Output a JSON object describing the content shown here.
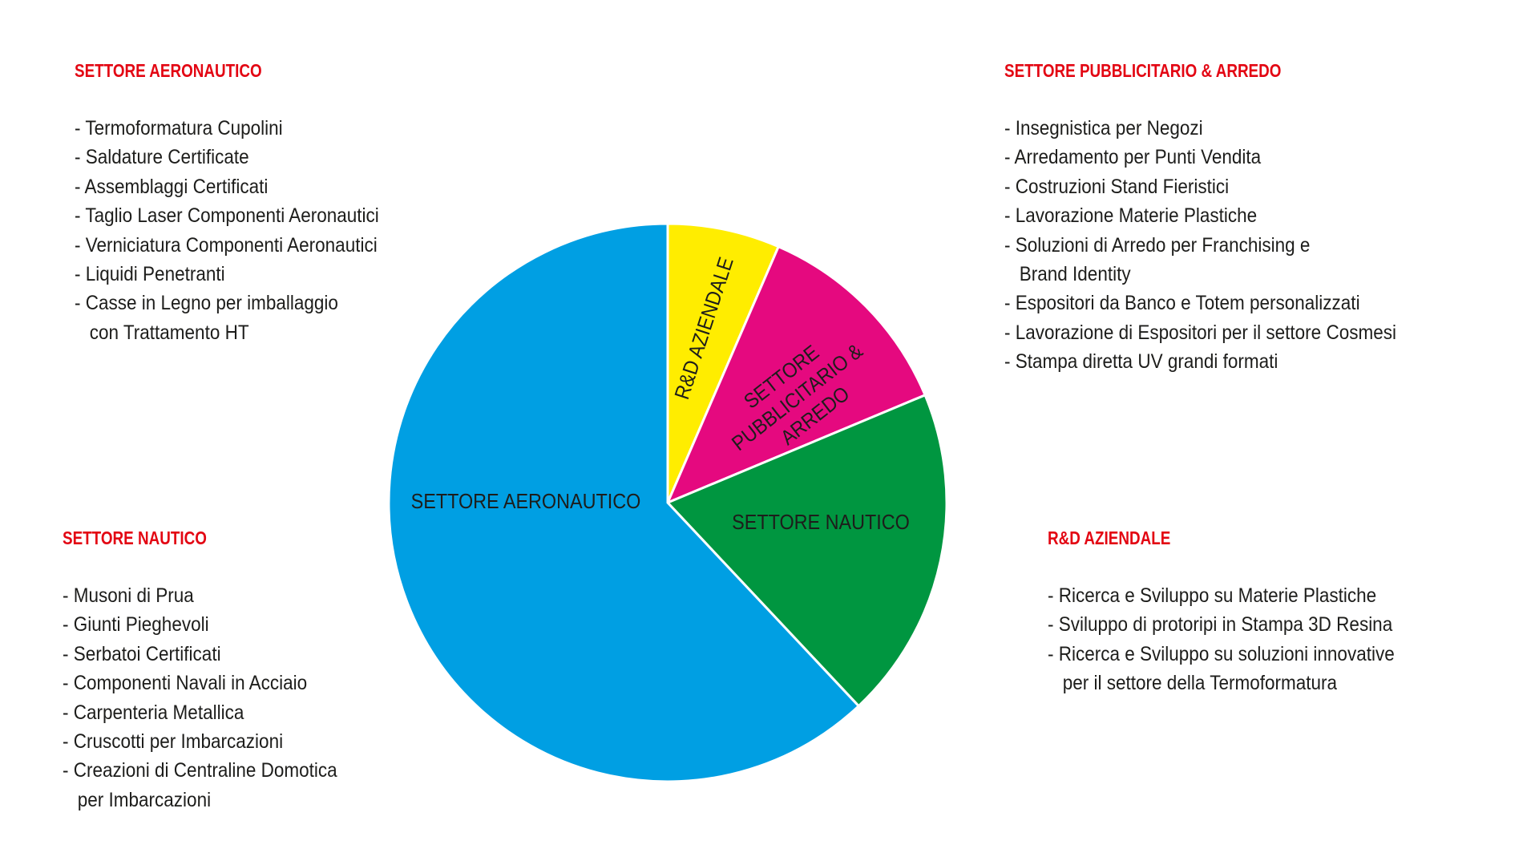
{
  "chart_data": {
    "type": "pie",
    "start": "top, clockwise",
    "slices": [
      {
        "label": "R&D AZIENDALE",
        "value": 6.5,
        "color": "#ffed00"
      },
      {
        "label_lines": [
          "SETTORE",
          "PUBBLICITARIO &",
          "ARREDO"
        ],
        "label": "SETTORE PUBBLICITARIO & ARREDO",
        "value": 12.2,
        "color": "#e5097f"
      },
      {
        "label": "SETTORE NAUTICO",
        "value": 19.3,
        "color": "#009640"
      },
      {
        "label": "SETTORE AERONAUTICO",
        "value": 62.0,
        "color": "#009fe3"
      }
    ]
  },
  "sections": {
    "aeronautico": {
      "title": "SETTORE AERONAUTICO",
      "items": [
        "- Termoformatura Cupolini",
        "- Saldature Certificate",
        "- Assemblaggi Certificati",
        "- Taglio Laser Componenti Aeronautici",
        "- Verniciatura Componenti Aeronautici",
        "- Liquidi Penetranti",
        "- Casse in Legno per imballaggio",
        "   con Trattamento HT"
      ]
    },
    "pubblicitario": {
      "title": "SETTORE PUBBLICITARIO & ARREDO",
      "items": [
        "- Insegnistica per Negozi",
        "- Arredamento per Punti Vendita",
        "- Costruzioni Stand Fieristici",
        "- Lavorazione Materie Plastiche",
        "- Soluzioni di Arredo per Franchising e",
        "   Brand Identity",
        "- Espositori da Banco e Totem personalizzati",
        "- Lavorazione di Espositori per il settore Cosmesi",
        "- Stampa diretta UV grandi formati"
      ]
    },
    "nautico": {
      "title": "SETTORE NAUTICO",
      "items": [
        "- Musoni di Prua",
        "- Giunti Pieghevoli",
        "- Serbatoi Certificati",
        "- Componenti Navali in Acciaio",
        "- Carpenteria Metallica",
        "- Cruscotti per Imbarcazioni",
        "- Creazioni di Centraline Domotica",
        "   per Imbarcazioni"
      ]
    },
    "rd": {
      "title": "R&D AZIENDALE",
      "items": [
        "- Ricerca e Sviluppo su Materie Plastiche",
        "- Sviluppo di protoripi in Stampa 3D Resina",
        "- Ricerca e Sviluppo su soluzioni innovative",
        "   per il settore della Termoformatura"
      ]
    }
  }
}
